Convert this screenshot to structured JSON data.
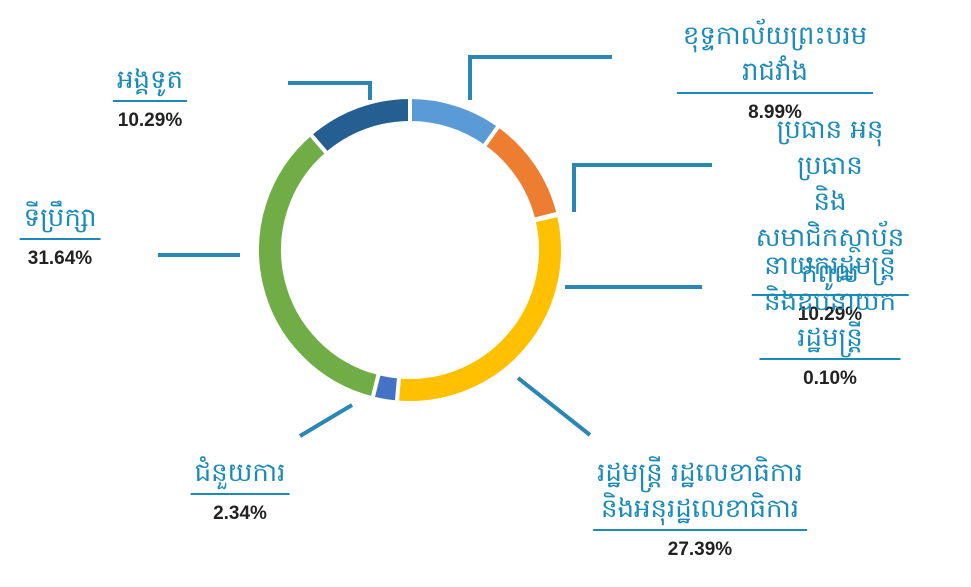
{
  "chart_data": {
    "type": "donut",
    "categories": [
      "ខុទ្ទកាល័យព្រះបរមរាជវាំង",
      "ប្រធាន អនុប្រធាន\nនិងសមាជិកស្ថាប័នកំពូល",
      "នាយករដ្ឋមន្ត្រី\nនិងឧបនាយករដ្ឋមន្ត្រី",
      "រដ្ឋមន្ត្រី រដ្ឋលេខាធិការ\nនិងអនុរដ្ឋលេខាធិការ",
      "ជំនួយការ",
      "ទីប្រឹក្សា",
      "អង្គទូត"
    ],
    "values": [
      8.99,
      10.29,
      0.1,
      27.39,
      2.34,
      31.64,
      10.29
    ],
    "value_labels": [
      "8.99%",
      "10.29%",
      "0.10%",
      "27.39%",
      "2.34%",
      "31.64%",
      "10.29%"
    ],
    "colors": [
      "#5b9bd5",
      "#ed7d31",
      "#a5a5a5",
      "#ffc000",
      "#4472c4",
      "#70ad47",
      "#255e91"
    ]
  }
}
